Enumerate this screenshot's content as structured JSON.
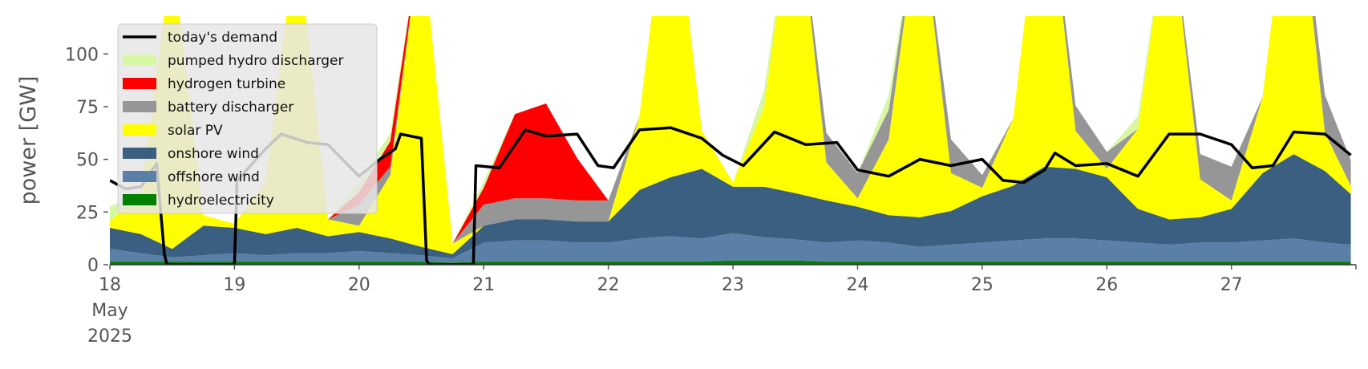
{
  "chart_data": {
    "type": "area",
    "ylabel": "power [GW]",
    "ylim": [
      0,
      118
    ],
    "yticks": [
      0,
      25,
      50,
      75,
      100
    ],
    "xlim": [
      "2025-05-18T00:00",
      "2025-05-27T23:59"
    ],
    "xticks": [
      {
        "date": "2025-05-18",
        "label": "18",
        "sub": [
          "May",
          "2025"
        ]
      },
      {
        "date": "2025-05-19",
        "label": "19"
      },
      {
        "date": "2025-05-20",
        "label": "20"
      },
      {
        "date": "2025-05-21",
        "label": "21"
      },
      {
        "date": "2025-05-22",
        "label": "22"
      },
      {
        "date": "2025-05-23",
        "label": "23"
      },
      {
        "date": "2025-05-24",
        "label": "24"
      },
      {
        "date": "2025-05-25",
        "label": "25"
      },
      {
        "date": "2025-05-26",
        "label": "26"
      },
      {
        "date": "2025-05-27",
        "label": "27"
      }
    ],
    "legend_position": "upper-left",
    "grid": false,
    "timestamps": [
      "2025-05-18T00:00",
      "2025-05-18T06:00",
      "2025-05-18T12:00",
      "2025-05-18T18:00",
      "2025-05-19T00:00",
      "2025-05-19T06:00",
      "2025-05-19T12:00",
      "2025-05-19T18:00",
      "2025-05-20T00:00",
      "2025-05-20T06:00",
      "2025-05-20T12:00",
      "2025-05-20T18:00",
      "2025-05-21T00:00",
      "2025-05-21T06:00",
      "2025-05-21T12:00",
      "2025-05-21T18:00",
      "2025-05-22T00:00",
      "2025-05-22T06:00",
      "2025-05-22T12:00",
      "2025-05-22T18:00",
      "2025-05-23T00:00",
      "2025-05-23T06:00",
      "2025-05-23T12:00",
      "2025-05-23T18:00",
      "2025-05-24T00:00",
      "2025-05-24T06:00",
      "2025-05-24T12:00",
      "2025-05-24T18:00",
      "2025-05-25T00:00",
      "2025-05-25T06:00",
      "2025-05-25T12:00",
      "2025-05-25T18:00",
      "2025-05-26T00:00",
      "2025-05-26T06:00",
      "2025-05-26T12:00",
      "2025-05-26T18:00",
      "2025-05-27T00:00",
      "2025-05-27T06:00",
      "2025-05-27T12:00",
      "2025-05-27T18:00",
      "2025-05-27T23:00"
    ],
    "series": [
      {
        "name": "hydroelectricity",
        "color": "#008000",
        "values": [
          1.5,
          1.5,
          1.5,
          1.5,
          1.5,
          1.5,
          1.5,
          1.5,
          1.5,
          1.5,
          1.5,
          1,
          1.5,
          1.5,
          1.5,
          1.5,
          1.5,
          1.5,
          1.5,
          1.5,
          2,
          2,
          2,
          1.5,
          1.5,
          1.5,
          1.5,
          1.5,
          1.5,
          1.5,
          1.5,
          1.5,
          1.5,
          1.5,
          1.5,
          1.5,
          1.5,
          1.5,
          1.5,
          1.5,
          1.5
        ]
      },
      {
        "name": "offshore wind",
        "color": "#5b80a7",
        "values": [
          6,
          4,
          2,
          3,
          4,
          3,
          4,
          4,
          5,
          4,
          3,
          2,
          9,
          10,
          10,
          9,
          9,
          11,
          12,
          11,
          13,
          11,
          10,
          9,
          10,
          9,
          7,
          8,
          9,
          10,
          11,
          11,
          10,
          9,
          8,
          9,
          9,
          10,
          11,
          9,
          8
        ]
      },
      {
        "name": "onshore wind",
        "color": "#3a5f80",
        "values": [
          10,
          9,
          4,
          14,
          12,
          10,
          12,
          8,
          9,
          7,
          4,
          2,
          8,
          10,
          10,
          10,
          10,
          23,
          28,
          33,
          22,
          24,
          22,
          20,
          16,
          13,
          14,
          16,
          22,
          26,
          34,
          33,
          30,
          16,
          12,
          12,
          16,
          32,
          40,
          34,
          24
        ]
      },
      {
        "name": "solar PV",
        "color": "#ffff00",
        "values": [
          3,
          20,
          140,
          5,
          2,
          25,
          140,
          8,
          3,
          30,
          150,
          5,
          0,
          0,
          0,
          0,
          0,
          35,
          150,
          18,
          2,
          38,
          150,
          18,
          4,
          36,
          150,
          18,
          4,
          32,
          150,
          18,
          4,
          38,
          150,
          18,
          4,
          36,
          150,
          18,
          4
        ]
      },
      {
        "name": "battery discharger",
        "color": "#969696",
        "values": [
          0,
          0,
          0,
          0,
          0,
          0,
          0,
          0,
          10,
          4,
          0,
          0,
          10,
          10,
          10,
          10,
          10,
          0,
          0,
          0,
          0,
          0,
          0,
          14,
          12,
          14,
          0,
          16,
          6,
          0,
          0,
          12,
          8,
          0,
          0,
          12,
          16,
          0,
          0,
          18,
          12
        ]
      },
      {
        "name": "hydrogen turbine",
        "color": "#ff0000",
        "values": [
          0,
          0,
          0,
          0,
          0,
          0,
          0,
          0,
          6,
          12,
          0,
          0,
          8,
          40,
          45,
          20,
          0,
          0,
          0,
          0,
          0,
          0,
          0,
          0,
          0,
          0,
          0,
          0,
          0,
          0,
          0,
          0,
          0,
          0,
          0,
          0,
          0,
          0,
          0,
          0,
          0
        ]
      },
      {
        "name": "pumped hydro discharger",
        "color": "#d8f7a4",
        "values": [
          7,
          0,
          0,
          0,
          0,
          0,
          0,
          0,
          5,
          4,
          0,
          0,
          3,
          0,
          0,
          0,
          0,
          0,
          0,
          0,
          0,
          8,
          0,
          0,
          0,
          7,
          0,
          0,
          0,
          0,
          0,
          0,
          0,
          6,
          0,
          0,
          0,
          0,
          0,
          0,
          0
        ]
      }
    ],
    "demand": {
      "name": "today's demand",
      "color": "#000000",
      "points": [
        [
          "2025-05-18T00:00",
          40
        ],
        [
          "2025-05-18T03:00",
          36
        ],
        [
          "2025-05-18T06:00",
          37
        ],
        [
          "2025-05-18T09:00",
          48
        ],
        [
          "2025-05-18T10:30",
          5
        ],
        [
          "2025-05-18T11:00",
          0
        ],
        [
          "2025-05-19T00:00",
          0
        ],
        [
          "2025-05-19T00:30",
          40
        ],
        [
          "2025-05-19T06:00",
          55
        ],
        [
          "2025-05-19T09:00",
          62
        ],
        [
          "2025-05-19T14:00",
          58
        ],
        [
          "2025-05-19T18:00",
          57
        ],
        [
          "2025-05-20T00:00",
          42
        ],
        [
          "2025-05-20T04:00",
          50
        ],
        [
          "2025-05-20T07:00",
          55
        ],
        [
          "2025-05-20T08:00",
          62
        ],
        [
          "2025-05-20T12:00",
          60
        ],
        [
          "2025-05-20T13:00",
          2
        ],
        [
          "2025-05-20T13:30",
          0
        ],
        [
          "2025-05-20T22:00",
          0
        ],
        [
          "2025-05-20T22:30",
          47
        ],
        [
          "2025-05-21T03:00",
          46
        ],
        [
          "2025-05-21T08:00",
          64
        ],
        [
          "2025-05-21T12:00",
          61
        ],
        [
          "2025-05-21T18:00",
          62
        ],
        [
          "2025-05-21T22:00",
          47
        ],
        [
          "2025-05-22T01:00",
          46
        ],
        [
          "2025-05-22T06:00",
          64
        ],
        [
          "2025-05-22T12:00",
          65
        ],
        [
          "2025-05-22T18:00",
          60
        ],
        [
          "2025-05-22T22:00",
          52
        ],
        [
          "2025-05-23T02:00",
          47
        ],
        [
          "2025-05-23T08:00",
          63
        ],
        [
          "2025-05-23T14:00",
          57
        ],
        [
          "2025-05-23T20:00",
          58
        ],
        [
          "2025-05-24T00:00",
          45
        ],
        [
          "2025-05-24T06:00",
          42
        ],
        [
          "2025-05-24T12:00",
          50
        ],
        [
          "2025-05-24T18:00",
          47
        ],
        [
          "2025-05-25T00:00",
          50
        ],
        [
          "2025-05-25T04:00",
          40
        ],
        [
          "2025-05-25T08:00",
          39
        ],
        [
          "2025-05-25T12:00",
          45
        ],
        [
          "2025-05-25T14:00",
          53
        ],
        [
          "2025-05-25T18:00",
          47
        ],
        [
          "2025-05-26T00:00",
          48
        ],
        [
          "2025-05-26T06:00",
          42
        ],
        [
          "2025-05-26T12:00",
          62
        ],
        [
          "2025-05-26T18:00",
          62
        ],
        [
          "2025-05-27T00:00",
          57
        ],
        [
          "2025-05-27T04:00",
          46
        ],
        [
          "2025-05-27T08:00",
          47
        ],
        [
          "2025-05-27T12:00",
          63
        ],
        [
          "2025-05-27T18:00",
          62
        ],
        [
          "2025-05-27T23:00",
          52
        ]
      ]
    },
    "legend": [
      {
        "label": "today's demand",
        "color": "#000000",
        "kind": "line"
      },
      {
        "label": "pumped hydro discharger",
        "color": "#d8f7a4",
        "kind": "patch"
      },
      {
        "label": "hydrogen turbine",
        "color": "#ff0000",
        "kind": "patch"
      },
      {
        "label": "battery discharger",
        "color": "#969696",
        "kind": "patch"
      },
      {
        "label": "solar PV",
        "color": "#ffff00",
        "kind": "patch"
      },
      {
        "label": "onshore wind",
        "color": "#3a5f80",
        "kind": "patch"
      },
      {
        "label": "offshore wind",
        "color": "#5b80a7",
        "kind": "patch"
      },
      {
        "label": "hydroelectricity",
        "color": "#008000",
        "kind": "patch"
      }
    ]
  }
}
